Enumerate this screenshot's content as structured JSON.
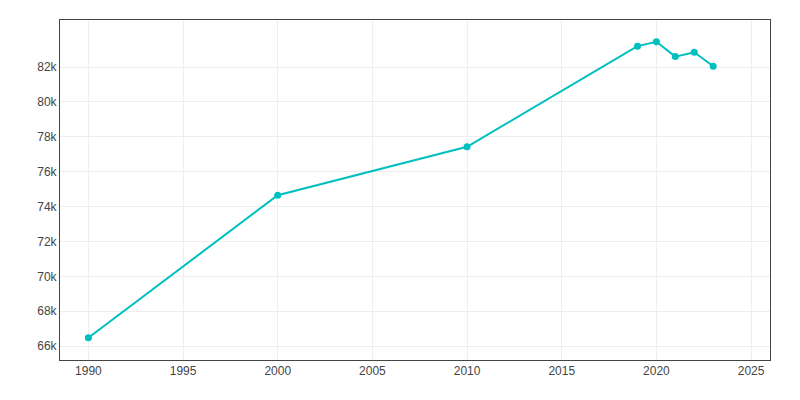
{
  "chart_data": {
    "type": "line",
    "x": [
      1990,
      2000,
      2010,
      2019,
      2020,
      2021,
      2022,
      2023
    ],
    "values": [
      66474,
      74653,
      77427,
      83200,
      83450,
      82600,
      82850,
      82050
    ],
    "color": "#00BFBF",
    "marker": "circle",
    "xlim": [
      1988.5,
      2026
    ],
    "ylim": [
      65200,
      84700
    ],
    "xticks": [
      1990,
      1995,
      2000,
      2005,
      2010,
      2015,
      2020,
      2025
    ],
    "yticks": [
      {
        "value": 66000,
        "label": "66k"
      },
      {
        "value": 68000,
        "label": "68k"
      },
      {
        "value": 70000,
        "label": "70k"
      },
      {
        "value": 72000,
        "label": "72k"
      },
      {
        "value": 74000,
        "label": "74k"
      },
      {
        "value": 76000,
        "label": "76k"
      },
      {
        "value": 78000,
        "label": "78k"
      },
      {
        "value": 80000,
        "label": "80k"
      },
      {
        "value": 82000,
        "label": "82k"
      }
    ],
    "grid": true
  }
}
